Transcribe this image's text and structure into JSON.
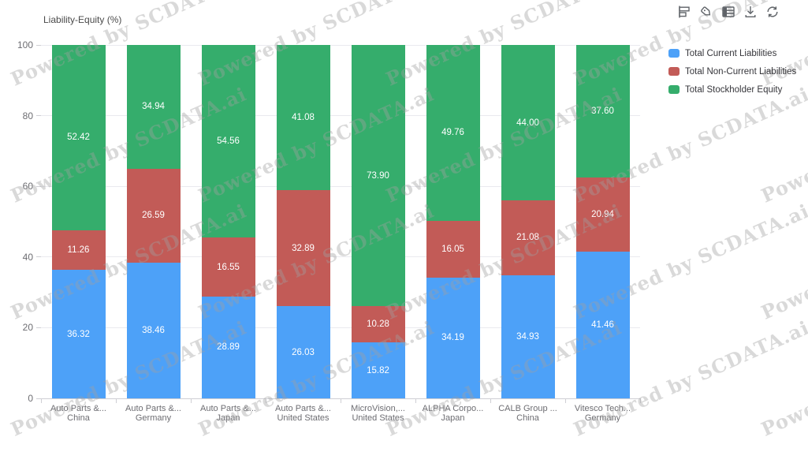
{
  "watermark": {
    "text": "Powered by SCDATA.ai"
  },
  "toolbar": {
    "icons": [
      "bar-chart",
      "tag",
      "table",
      "download",
      "refresh"
    ]
  },
  "legend": {
    "position": "right",
    "items": [
      {
        "label": "Total Current Liabilities",
        "color": "#4da1f8"
      },
      {
        "label": "Total Non-Current Liabilities",
        "color": "#c25b57"
      },
      {
        "label": "Total Stockholder Equity",
        "color": "#35ad6c"
      }
    ]
  },
  "chart_data": {
    "type": "bar",
    "stacked": true,
    "title": "Liability-Equity (%)",
    "xlabel": "",
    "ylabel": "Liability-Equity (%)",
    "ylim": [
      0,
      100
    ],
    "yticks": [
      0,
      20,
      40,
      60,
      80,
      100
    ],
    "grid": true,
    "legend_position": "right",
    "categories": [
      {
        "company": "Auto Parts &...",
        "country": "China"
      },
      {
        "company": "Auto Parts &...",
        "country": "Germany"
      },
      {
        "company": "Auto Parts &...",
        "country": "Japan"
      },
      {
        "company": "Auto Parts &...",
        "country": "United States"
      },
      {
        "company": "MicroVision,...",
        "country": "United States"
      },
      {
        "company": "ALPHA Corpo...",
        "country": "Japan"
      },
      {
        "company": "CALB Group ...",
        "country": "China"
      },
      {
        "company": "Vitesco Tech...",
        "country": "Germany"
      }
    ],
    "series": [
      {
        "name": "Total Current Liabilities",
        "color": "#4da1f8",
        "values": [
          36.32,
          38.46,
          28.89,
          26.03,
          15.82,
          34.19,
          34.93,
          41.46
        ]
      },
      {
        "name": "Total Non-Current Liabilities",
        "color": "#c25b57",
        "values": [
          11.26,
          26.59,
          16.55,
          32.89,
          10.28,
          16.05,
          21.08,
          20.94
        ]
      },
      {
        "name": "Total Stockholder Equity",
        "color": "#35ad6c",
        "values": [
          52.42,
          34.94,
          54.56,
          41.08,
          73.9,
          49.76,
          44.0,
          37.6
        ]
      }
    ]
  }
}
